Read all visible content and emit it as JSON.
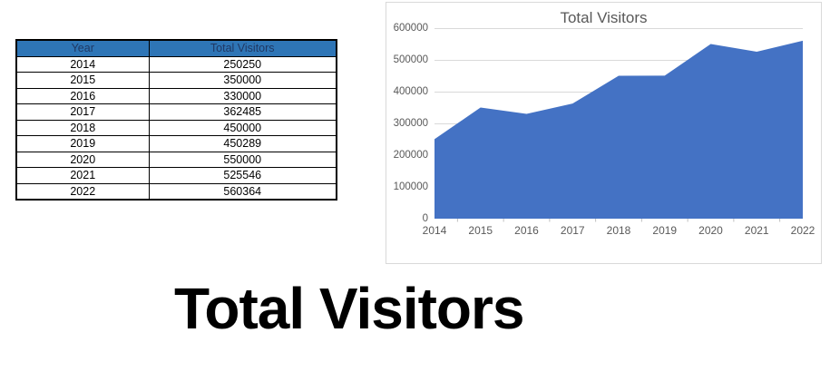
{
  "table": {
    "headers": [
      "Year",
      "Total Visitors"
    ],
    "rows": [
      [
        "2014",
        "250250"
      ],
      [
        "2015",
        "350000"
      ],
      [
        "2016",
        "330000"
      ],
      [
        "2017",
        "362485"
      ],
      [
        "2018",
        "450000"
      ],
      [
        "2019",
        "450289"
      ],
      [
        "2020",
        "550000"
      ],
      [
        "2021",
        "525546"
      ],
      [
        "2022",
        "560364"
      ]
    ],
    "header_bg": "#2E75B6",
    "header_text_color": "#1F3864"
  },
  "chart_data": {
    "type": "area",
    "title": "Total Visitors",
    "categories": [
      "2014",
      "2015",
      "2016",
      "2017",
      "2018",
      "2019",
      "2020",
      "2021",
      "2022"
    ],
    "values": [
      250250,
      350000,
      330000,
      362485,
      450000,
      450289,
      550000,
      525546,
      560364
    ],
    "xlabel": "",
    "ylabel": "",
    "ylim": [
      0,
      600000
    ],
    "ytick_step": 100000,
    "ytick_labels": [
      "0",
      "100000",
      "200000",
      "300000",
      "400000",
      "500000",
      "600000"
    ],
    "grid": true,
    "legend": false,
    "area_color": "#4472C4",
    "text_color": "#595959",
    "grid_color": "#D9D9D9",
    "axis_color": "#BFBFBF"
  },
  "caption": "Total Visitors"
}
